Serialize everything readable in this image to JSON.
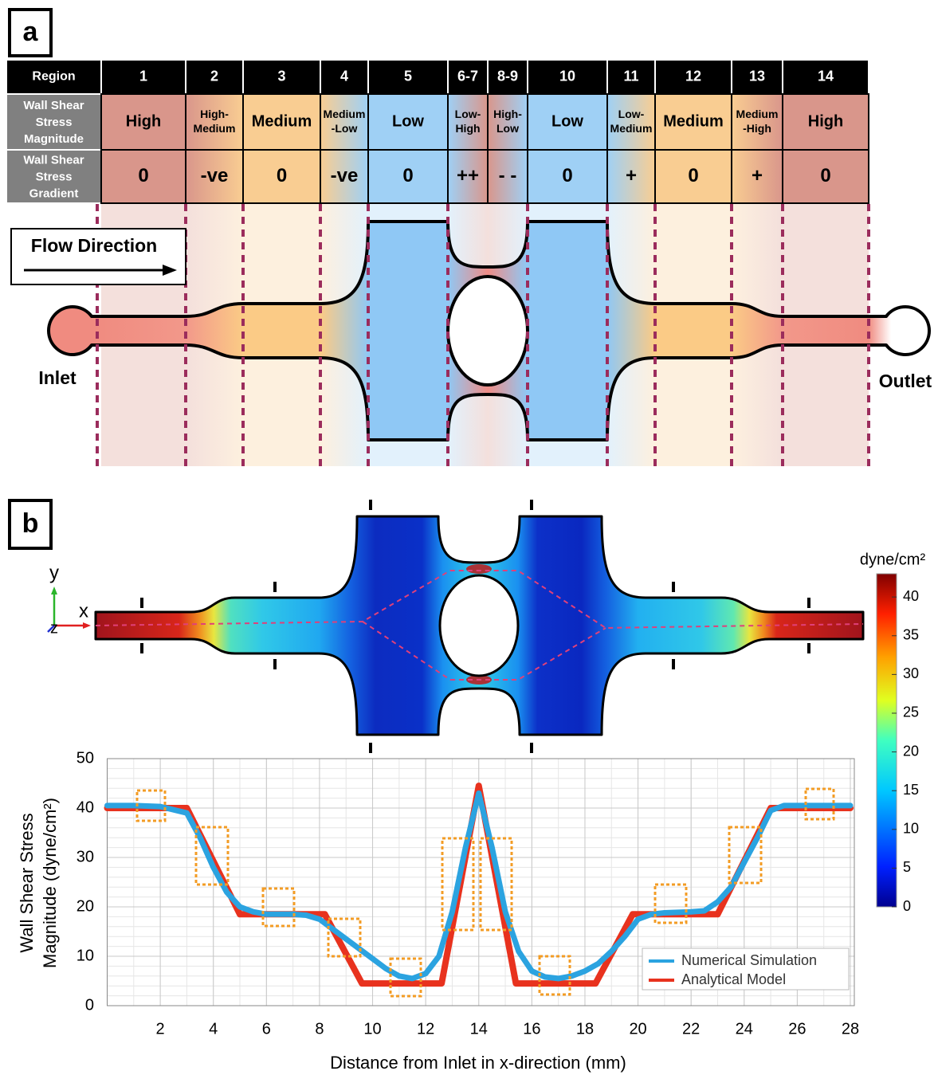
{
  "panel_a": {
    "label": "a",
    "table": {
      "header": [
        "Region",
        "1",
        "2",
        "3",
        "4",
        "5",
        "6-7",
        "8-9",
        "10",
        "11",
        "12",
        "13",
        "14"
      ],
      "rows": [
        [
          "Wall Shear\nStress\nMagnitude",
          "High",
          "High-\nMedium",
          "Medium",
          "Medium\n-Low",
          "Low",
          "Low-\nHigh",
          "High-\nLow",
          "Low",
          "Low-\nMedium",
          "Medium",
          "Medium\n-High",
          "High"
        ],
        [
          "Wall Shear\nStress\nGradient",
          "0",
          "-ve",
          "0",
          "-ve",
          "0",
          "++",
          "- -",
          "0",
          "+",
          "0",
          "+",
          "0"
        ]
      ]
    },
    "flow_label": "Flow Direction",
    "inlet": "Inlet",
    "outlet": "Outlet"
  },
  "panel_b": {
    "label": "b",
    "axes": [
      "y",
      "x",
      "z"
    ],
    "colorbar": {
      "title": "dyne/cm²",
      "lim": [
        0,
        43
      ],
      "ticks": [
        0,
        5,
        10,
        15,
        20,
        25,
        30,
        35,
        40
      ]
    }
  },
  "chart_data": {
    "type": "line",
    "xlabel": "Distance from Inlet in x-direction (mm)",
    "ylabel": [
      "Wall Shear Stress",
      "Magnitude (dyne/cm²)"
    ],
    "xlim": [
      0,
      28.15
    ],
    "ylim": [
      0,
      50
    ],
    "xticks": [
      2,
      4,
      6,
      8,
      10,
      12,
      14,
      16,
      18,
      20,
      22,
      24,
      26,
      28
    ],
    "yticks": [
      0,
      10,
      20,
      30,
      40,
      50
    ],
    "grid": true,
    "legend": "lower right",
    "series": [
      {
        "name": "Numerical Simulation",
        "color": "#2ba3e0",
        "x": [
          0,
          1,
          2,
          3,
          3.5,
          4,
          4.5,
          5,
          5.5,
          6,
          7,
          7.5,
          8,
          8.5,
          9,
          9.5,
          10,
          10.5,
          11,
          11.5,
          12,
          12.5,
          13,
          13.5,
          14,
          14.5,
          15,
          15.5,
          16,
          16.5,
          17,
          17.5,
          18,
          18.5,
          19,
          19.5,
          20,
          20.5,
          21,
          22,
          22.5,
          23,
          23.5,
          24,
          24.5,
          25,
          25.5,
          26,
          27,
          28
        ],
        "values": [
          40.5,
          40.5,
          40.3,
          39,
          34,
          28,
          23,
          20,
          19,
          18.5,
          18.5,
          18.3,
          17.5,
          15.5,
          13.5,
          11.5,
          9.5,
          7.5,
          6,
          5.5,
          6.5,
          10,
          19,
          32,
          43,
          32,
          19,
          11,
          7,
          5.8,
          5.5,
          6,
          7,
          8.5,
          11,
          14,
          17.5,
          18.5,
          18.8,
          19,
          19.2,
          21,
          24,
          29,
          34,
          39.5,
          40.5,
          40.5,
          40.5,
          40.5
        ]
      },
      {
        "name": "Analytical Model",
        "color": "#e8321e",
        "x": [
          0,
          3,
          5,
          8.2,
          9.6,
          12.6,
          14,
          15.4,
          18.4,
          19.8,
          23,
          25,
          28
        ],
        "values": [
          40,
          40,
          18.5,
          18.5,
          4.5,
          4.5,
          44.5,
          4.5,
          4.5,
          18.5,
          18.5,
          40,
          40
        ]
      }
    ]
  }
}
